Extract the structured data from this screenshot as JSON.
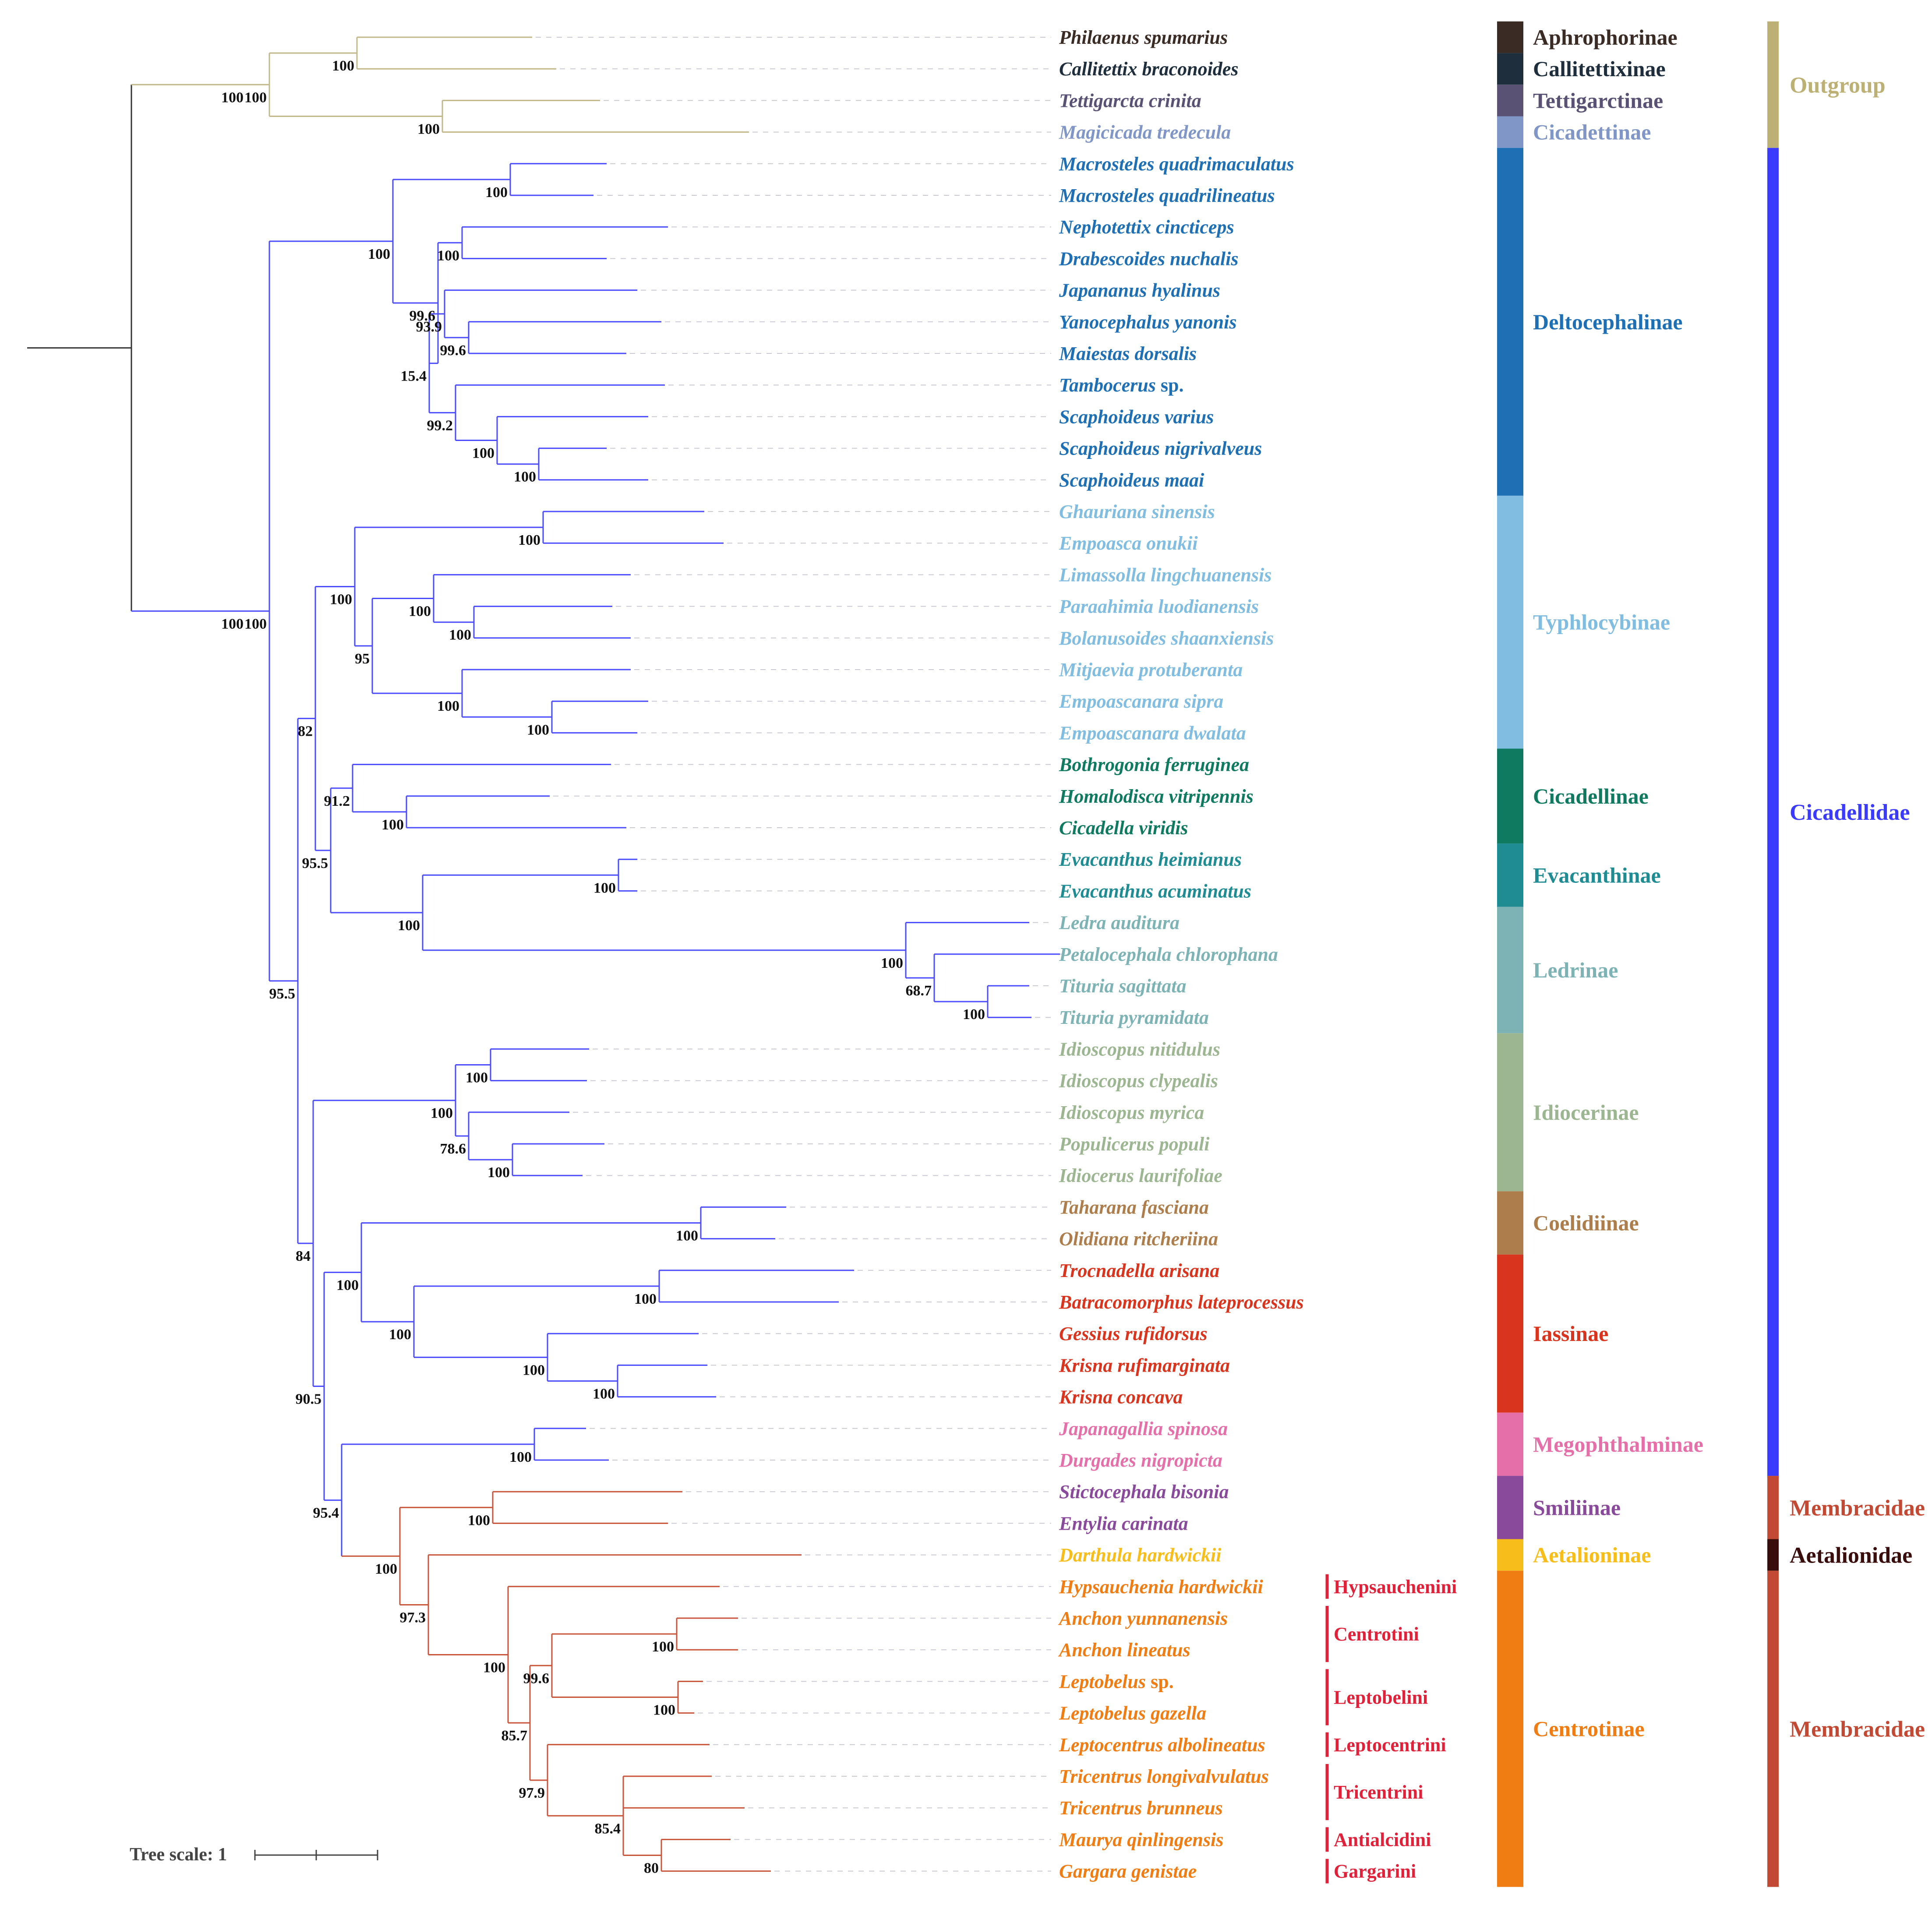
{
  "colors": {
    "branch_outgroup": "#c2b788",
    "branch_cicadellidae": "#4b4bff",
    "branch_membracidae": "#c8553a",
    "branch_root": "#333333",
    "leader": "#c9c9d4"
  },
  "taxa": [
    {
      "name": "Philaenus spumarius",
      "suffix": "",
      "color": "#3b2b25"
    },
    {
      "name": "Callitettix braconoides",
      "suffix": "",
      "color": "#1f2e3d"
    },
    {
      "name": "Tettigarcta crinita",
      "suffix": "",
      "color": "#5a5275"
    },
    {
      "name": "Magicicada tredecula",
      "suffix": "",
      "color": "#7f96c7"
    },
    {
      "name": "Macrosteles quadrimaculatus",
      "suffix": "",
      "color": "#1f6fb5"
    },
    {
      "name": "Macrosteles quadrilineatus",
      "suffix": "",
      "color": "#1f6fb5"
    },
    {
      "name": "Nephotettix cincticeps",
      "suffix": "",
      "color": "#1f6fb5"
    },
    {
      "name": "Drabescoides nuchalis",
      "suffix": "",
      "color": "#1f6fb5"
    },
    {
      "name": "Japananus hyalinus",
      "suffix": "",
      "color": "#1f6fb5"
    },
    {
      "name": "Yanocephalus yanonis",
      "suffix": "",
      "color": "#1f6fb5"
    },
    {
      "name": "Maiestas dorsalis",
      "suffix": "",
      "color": "#1f6fb5"
    },
    {
      "name": "Tambocerus",
      "suffix": " sp.",
      "color": "#1f6fb5"
    },
    {
      "name": "Scaphoideus varius",
      "suffix": "",
      "color": "#1f6fb5"
    },
    {
      "name": "Scaphoideus nigrivalveus",
      "suffix": "",
      "color": "#1f6fb5"
    },
    {
      "name": "Scaphoideus maai",
      "suffix": "",
      "color": "#1f6fb5"
    },
    {
      "name": "Ghauriana sinensis",
      "suffix": "",
      "color": "#80bde0"
    },
    {
      "name": "Empoasca onukii",
      "suffix": "",
      "color": "#80bde0"
    },
    {
      "name": "Limassolla lingchuanensis",
      "suffix": "",
      "color": "#80bde0"
    },
    {
      "name": "Paraahimia luodianensis",
      "suffix": "",
      "color": "#80bde0"
    },
    {
      "name": "Bolanusoides shaanxiensis",
      "suffix": "",
      "color": "#80bde0"
    },
    {
      "name": "Mitjaevia protuberanta",
      "suffix": "",
      "color": "#80bde0"
    },
    {
      "name": "Empoascanara sipra",
      "suffix": "",
      "color": "#80bde0"
    },
    {
      "name": "Empoascanara dwalata",
      "suffix": "",
      "color": "#80bde0"
    },
    {
      "name": "Bothrogonia ferruginea",
      "suffix": "",
      "color": "#0f7a5f"
    },
    {
      "name": "Homalodisca vitripennis",
      "suffix": "",
      "color": "#0f7a5f"
    },
    {
      "name": "Cicadella viridis",
      "suffix": "",
      "color": "#0f7a5f"
    },
    {
      "name": "Evacanthus heimianus",
      "suffix": "",
      "color": "#1f8b93"
    },
    {
      "name": "Evacanthus acuminatus",
      "suffix": "",
      "color": "#1f8b93"
    },
    {
      "name": "Ledra auditura",
      "suffix": "",
      "color": "#7db3b5"
    },
    {
      "name": "Petalocephala chlorophana",
      "suffix": "",
      "color": "#7db3b5"
    },
    {
      "name": "Tituria sagittata",
      "suffix": "",
      "color": "#7db3b5"
    },
    {
      "name": "Tituria pyramidata",
      "suffix": "",
      "color": "#7db3b5"
    },
    {
      "name": "Idioscopus nitidulus",
      "suffix": "",
      "color": "#9cb691"
    },
    {
      "name": "Idioscopus clypealis",
      "suffix": "",
      "color": "#9cb691"
    },
    {
      "name": "Idioscopus myrica",
      "suffix": "",
      "color": "#9cb691"
    },
    {
      "name": "Populicerus populi",
      "suffix": "",
      "color": "#9cb691"
    },
    {
      "name": "Idiocerus laurifoliae",
      "suffix": "",
      "color": "#9cb691"
    },
    {
      "name": "Taharana fasciana",
      "suffix": "",
      "color": "#ad7d4b"
    },
    {
      "name": "Olidiana ritcheriina",
      "suffix": "",
      "color": "#ad7d4b"
    },
    {
      "name": "Trocnadella arisana",
      "suffix": "",
      "color": "#d9341e"
    },
    {
      "name": "Batracomorphus lateprocessus",
      "suffix": "",
      "color": "#d9341e"
    },
    {
      "name": "Gessius rufidorsus",
      "suffix": "",
      "color": "#d9341e"
    },
    {
      "name": "Krisna rufimarginata",
      "suffix": "",
      "color": "#d9341e"
    },
    {
      "name": "Krisna concava",
      "suffix": "",
      "color": "#d9341e"
    },
    {
      "name": "Japanagallia spinosa",
      "suffix": "",
      "color": "#e570a9"
    },
    {
      "name": "Durgades nigropicta",
      "suffix": "",
      "color": "#e570a9"
    },
    {
      "name": "Stictocephala bisonia",
      "suffix": "",
      "color": "#8a4a9b"
    },
    {
      "name": "Entylia carinata",
      "suffix": "",
      "color": "#8a4a9b"
    },
    {
      "name": "Darthula hardwickii",
      "suffix": "",
      "color": "#f6bd1b"
    },
    {
      "name": "Hypsauchenia hardwickii",
      "suffix": "",
      "color": "#f07c14"
    },
    {
      "name": "Anchon yunnanensis",
      "suffix": "",
      "color": "#f07c14"
    },
    {
      "name": "Anchon lineatus",
      "suffix": "",
      "color": "#f07c14"
    },
    {
      "name": "Leptobelus",
      "suffix": " sp.",
      "color": "#f07c14"
    },
    {
      "name": "Leptobelus gazella",
      "suffix": "",
      "color": "#f07c14"
    },
    {
      "name": "Leptocentrus albolineatus",
      "suffix": "",
      "color": "#f07c14"
    },
    {
      "name": "Tricentrus longivalvulatus",
      "suffix": "",
      "color": "#f07c14"
    },
    {
      "name": "Tricentrus brunneus",
      "suffix": "",
      "color": "#f07c14"
    },
    {
      "name": "Maurya qinlingensis",
      "suffix": "",
      "color": "#f07c14"
    },
    {
      "name": "Gargara genistae",
      "suffix": "",
      "color": "#f07c14"
    }
  ],
  "subfamilies": [
    {
      "label": "Aphrophorinae",
      "color": "#3b2b25",
      "first": 0,
      "last": 0
    },
    {
      "label": "Callitettixinae",
      "color": "#1f2e3d",
      "first": 1,
      "last": 1
    },
    {
      "label": "Tettigarctinae",
      "color": "#5a5275",
      "first": 2,
      "last": 2
    },
    {
      "label": "Cicadettinae",
      "color": "#7f96c7",
      "first": 3,
      "last": 3
    },
    {
      "label": "Deltocephalinae",
      "color": "#1f6fb5",
      "first": 4,
      "last": 14
    },
    {
      "label": "Typhlocybinae",
      "color": "#80bde0",
      "first": 15,
      "last": 22
    },
    {
      "label": "Cicadellinae",
      "color": "#0f7a5f",
      "first": 23,
      "last": 25
    },
    {
      "label": "Evacanthinae",
      "color": "#1f8b93",
      "first": 26,
      "last": 27
    },
    {
      "label": "Ledrinae",
      "color": "#7db3b5",
      "first": 28,
      "last": 31
    },
    {
      "label": "Idiocerinae",
      "color": "#9cb691",
      "first": 32,
      "last": 36
    },
    {
      "label": "Coelidiinae",
      "color": "#ad7d4b",
      "first": 37,
      "last": 38
    },
    {
      "label": "Iassinae",
      "color": "#d9341e",
      "first": 39,
      "last": 43
    },
    {
      "label": "Megophthalminae",
      "color": "#e570a9",
      "first": 44,
      "last": 45
    },
    {
      "label": "Smiliinae",
      "color": "#8a4a9b",
      "first": 46,
      "last": 47
    },
    {
      "label": "Aetalioninae",
      "color": "#f6bd1b",
      "first": 48,
      "last": 48
    },
    {
      "label": "Centrotinae",
      "color": "#f07c14",
      "first": 49,
      "last": 58
    }
  ],
  "tribes": [
    {
      "label": "Hypsauchenini",
      "first": 49,
      "last": 49
    },
    {
      "label": "Centrotini",
      "first": 50,
      "last": 51
    },
    {
      "label": "Leptobelini",
      "first": 52,
      "last": 53
    },
    {
      "label": "Leptocentrini",
      "first": 54,
      "last": 54
    },
    {
      "label": "Tricentrini",
      "first": 55,
      "last": 56
    },
    {
      "label": "Antialcidini",
      "first": 57,
      "last": 57
    },
    {
      "label": "Gargarini",
      "first": 58,
      "last": 58
    }
  ],
  "tribe_color": "#e0213a",
  "clades": [
    {
      "label": "Outgroup",
      "color": "#bdb074",
      "first": 0,
      "last": 3
    },
    {
      "label": "Cicadellidae",
      "color": "#3b3bff",
      "first": 4,
      "last": 45
    },
    {
      "label": "Membracidae",
      "color": "#c24a34",
      "first": 46,
      "last": 47
    },
    {
      "label": "Aetalionidae",
      "color": "#3a0d0d",
      "first": 48,
      "last": 48
    },
    {
      "label": "Membracidae",
      "color": "#c24a34",
      "first": 49,
      "last": 58
    }
  ],
  "supports": {
    "root_outgroup": "100",
    "callitettix_pair": "100",
    "cicad_pair": "100",
    "ingroup": "100",
    "deltocephalinae": "100",
    "macrosteles": "100",
    "delto_rest": "99.6",
    "neph_drab": "100",
    "delto_93": "93.9",
    "yano_maiestas": "99.6",
    "delto_15": "15.4",
    "tambocerus_clade": "99.2",
    "scaph_three": "100",
    "scaph_pair": "100",
    "node_95_5_main": "95.5",
    "node_82": "82",
    "typhlocybinae": "100",
    "ghau_emp": "100",
    "typhlo_95": "95",
    "lim_group": "100",
    "para_bola": "100",
    "mitj_group": "100",
    "empoascanara": "100",
    "node_95_5_upper": "95.5",
    "cicadellinae": "91.2",
    "homa_cica": "100",
    "evac_ledr": "100",
    "evacanthus": "100",
    "ledrinae": "100",
    "ledra_node": "68.7",
    "tituria": "100",
    "node_84": "84",
    "idiocerinae": "100",
    "idio_pair": "100",
    "idio_78": "78.6",
    "popu_idio": "100",
    "node_90_5": "90.5",
    "coel_iass": "100",
    "coelidiinae": "100",
    "iassinae": "100",
    "troc_batr": "100",
    "gess_kris": "100",
    "krisna": "100",
    "node_95_4": "95.4",
    "megophthalminae": "100",
    "membracoidea": "100",
    "smiliinae": "100",
    "node_97_3": "97.3",
    "centrotinae": "100",
    "node_85_7": "85.7",
    "node_99_6": "99.6",
    "anchon": "100",
    "leptobelus": "100",
    "node_97_9": "97.9",
    "tricentrus_group": "100",
    "node_85_4": "85.4",
    "node_80": "80"
  },
  "scale_bar": {
    "label": "Tree scale: 1",
    "length": 1
  }
}
